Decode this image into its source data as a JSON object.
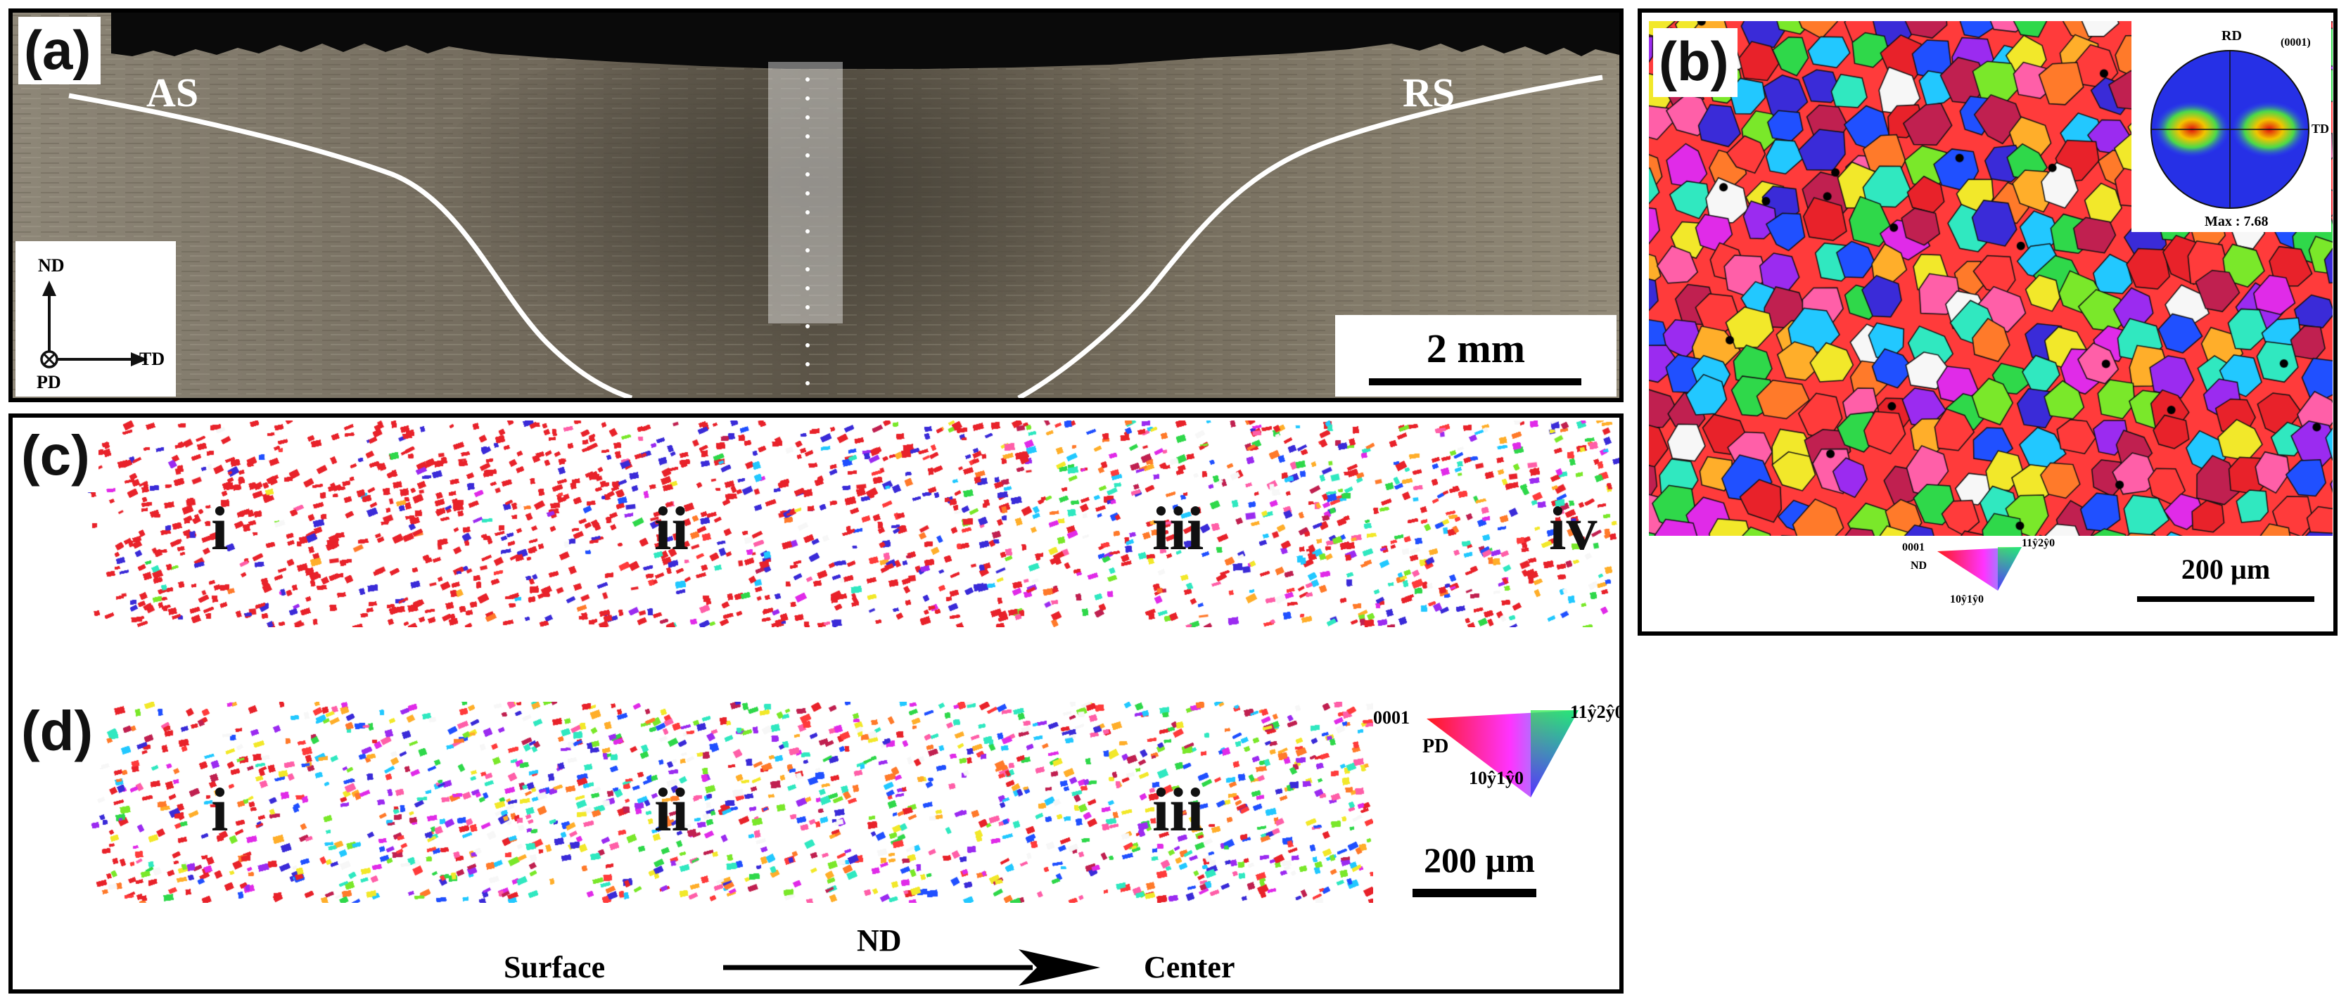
{
  "panel_a": {
    "label": "(a)",
    "advancing_side": "AS",
    "retreating_side": "RS",
    "axis_nd": "ND",
    "axis_td": "TD",
    "axis_pd": "PD",
    "scale_bar": "2 mm"
  },
  "panel_b": {
    "label": "(b)",
    "pole_figure": {
      "rd": "RD",
      "td": "TD",
      "plane": "(0001)",
      "max": "Max : 7.68"
    },
    "ipf_key": {
      "c0001": "0001",
      "c1120": "11ŷ2ŷ0",
      "c1010": "10ŷ1ŷ0",
      "axis": "ND"
    },
    "scale_bar": "200 µm"
  },
  "panel_c": {
    "label": "(c)",
    "regions": [
      "i",
      "ii",
      "iii",
      "iv"
    ]
  },
  "panel_d": {
    "label": "(d)",
    "regions": [
      "i",
      "ii",
      "iii"
    ],
    "ipf_key": {
      "c0001": "0001",
      "c1120": "11ŷ2ŷ0",
      "c1010": "10ŷ1ŷ0",
      "axis": "PD"
    },
    "scale_bar": "200 µm",
    "direction": {
      "start": "Surface",
      "label": "ND",
      "end": "Center"
    }
  },
  "colors": {
    "frame": "#000000",
    "weld_line": "#ffffff",
    "ebsd_red": "#e8222a",
    "ebsd_blue": "#3a2bd8",
    "ebsd_green": "#2fd84a"
  }
}
